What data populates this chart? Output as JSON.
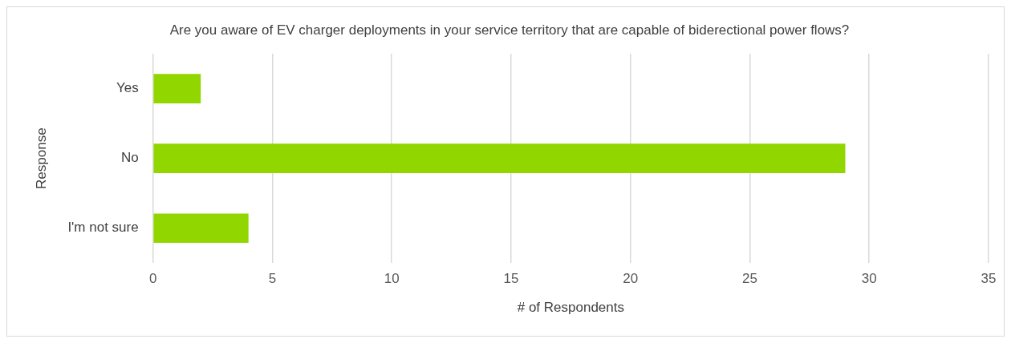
{
  "chart_data": {
    "type": "bar",
    "orientation": "horizontal",
    "title": "Are you aware of EV charger deployments in your service territory that are capable of biderectional power flows?",
    "xlabel": "# of Respondents",
    "ylabel": "Response",
    "categories": [
      "Yes",
      "No",
      "I'm not sure"
    ],
    "values": [
      2,
      29,
      4
    ],
    "color": "#92d600",
    "xlim": [
      0,
      35
    ],
    "xticks": [
      0,
      5,
      10,
      15,
      20,
      25,
      30,
      35
    ],
    "grid": "x",
    "legend": false
  }
}
